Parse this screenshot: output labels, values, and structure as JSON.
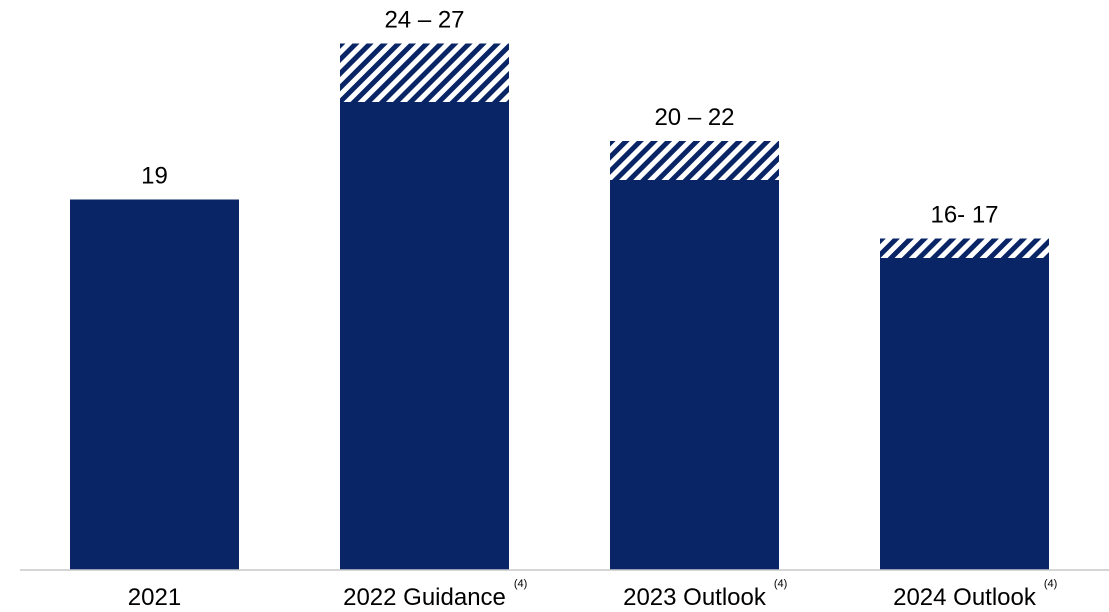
{
  "colors": {
    "bar": "#0a2566",
    "hatch_stripe": "#0a2566",
    "hatch_background": "#ffffff",
    "axis_line": "#c8c8c8"
  },
  "chart_data": {
    "type": "bar",
    "stacked": true,
    "categories": [
      "2021",
      "2022 Guidance",
      "2023 Outlook",
      "2024 Outlook"
    ],
    "category_footnotes": [
      "",
      "(4)",
      "(4)",
      "(4)"
    ],
    "series": [
      {
        "name": "",
        "style": "solid",
        "values": [
          19,
          24,
          20,
          16
        ]
      },
      {
        "name": "",
        "style": "hatched",
        "values": [
          0,
          3,
          2,
          1
        ]
      }
    ],
    "value_labels": [
      "19",
      "24 – 27",
      "20 – 22",
      "16- 17"
    ],
    "title": "",
    "xlabel": "",
    "ylabel": "",
    "ylim": [
      0,
      27.5
    ],
    "y_axis_visible": false,
    "grid": false,
    "legend": "none"
  }
}
